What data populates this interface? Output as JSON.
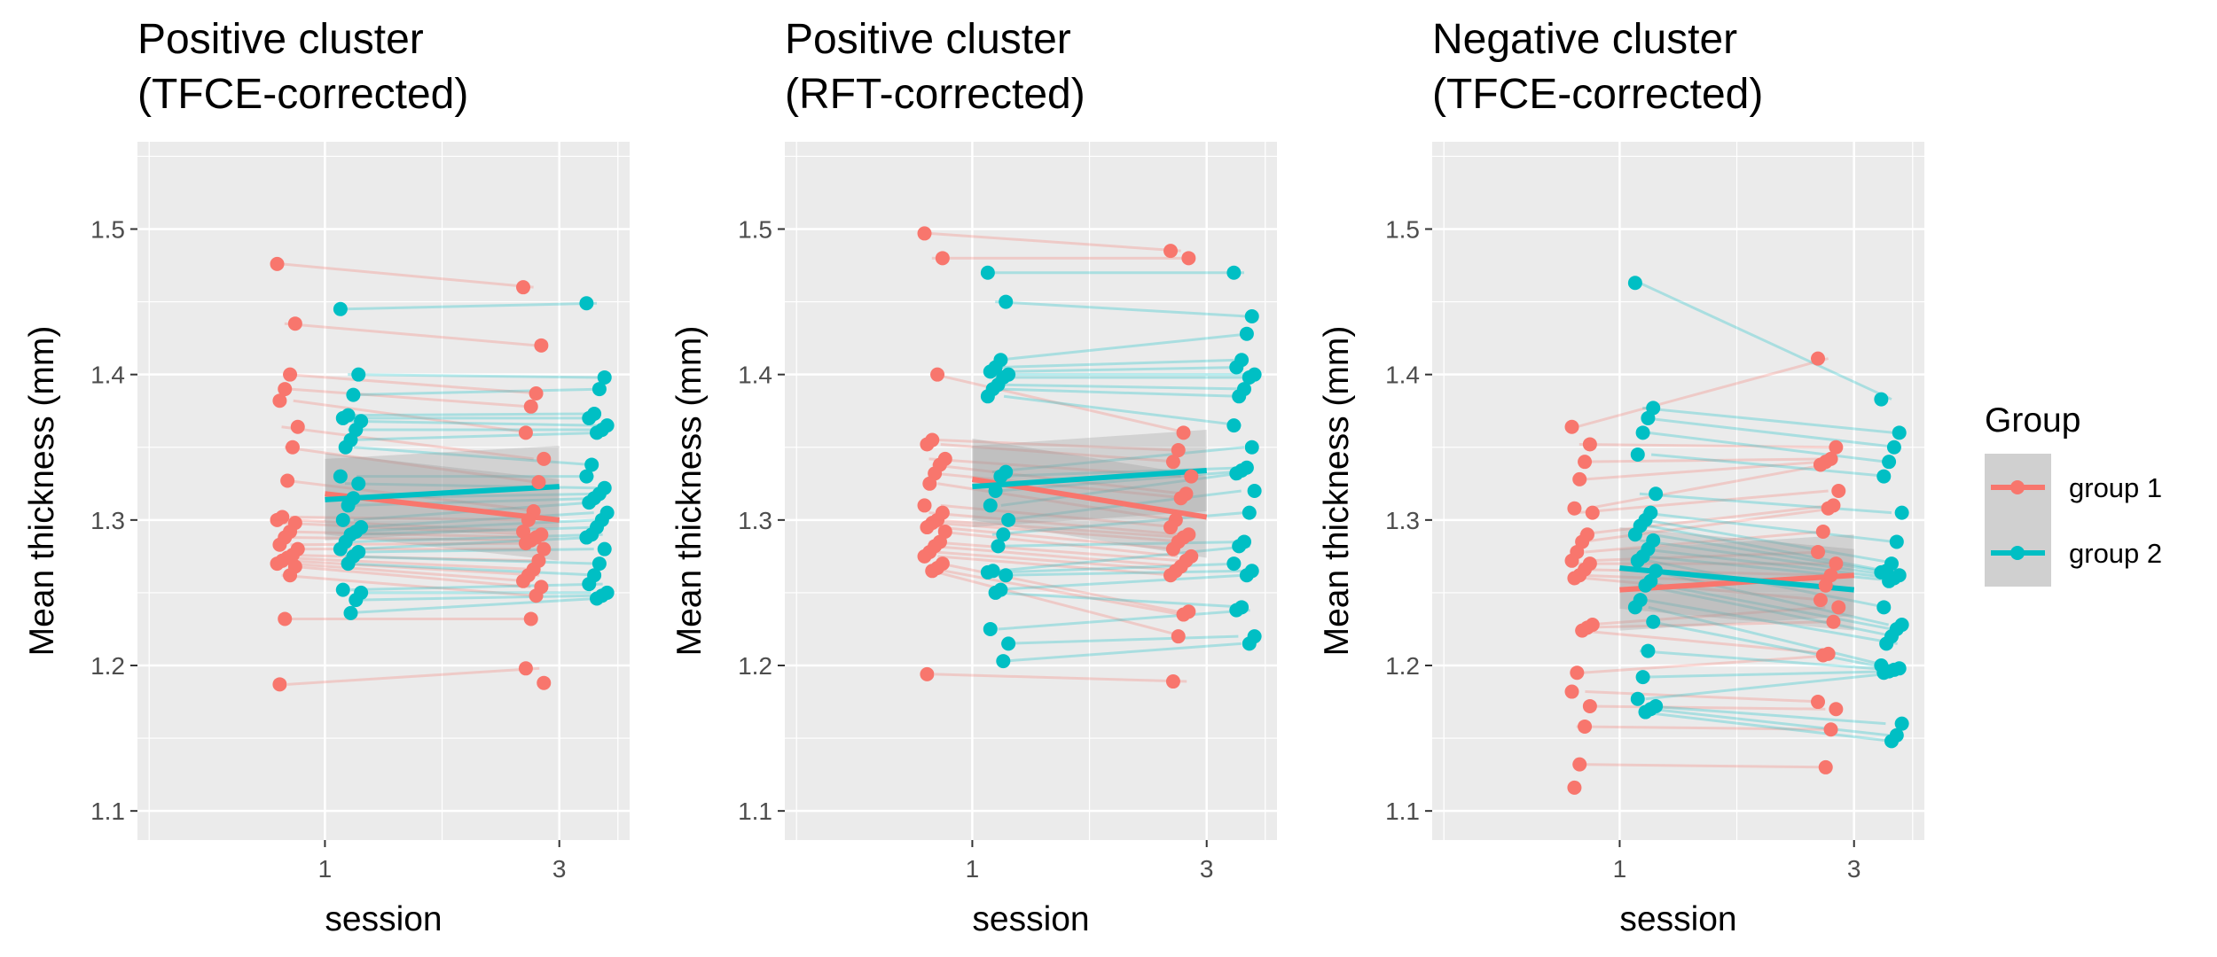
{
  "chart_data": [
    {
      "type": "scatter",
      "title_lines": [
        "Positive cluster",
        " (TFCE-corrected)"
      ],
      "xlabel": "session",
      "ylabel": "Mean thickness (mm)",
      "x_ticks": [
        "1",
        "3"
      ],
      "y_ticks": [
        "1.1",
        "1.2",
        "1.3",
        "1.4",
        "1.5"
      ],
      "ylim": [
        1.08,
        1.56
      ],
      "fit": [
        {
          "name": "group 1",
          "start": 1.318,
          "end": 1.3
        },
        {
          "name": "group 2",
          "start": 1.314,
          "end": 1.323
        }
      ],
      "series": [
        {
          "name": "group 1",
          "s1": [
            1.476,
            1.435,
            1.4,
            1.39,
            1.382,
            1.364,
            1.35,
            1.327,
            1.302,
            1.3,
            1.298,
            1.292,
            1.288,
            1.283,
            1.28,
            1.276,
            1.274,
            1.272,
            1.27,
            1.268,
            1.262,
            1.232,
            1.187
          ],
          "s3": [
            1.46,
            1.42,
            1.387,
            1.378,
            1.36,
            1.342,
            1.326,
            1.306,
            1.3,
            1.292,
            1.29,
            1.288,
            1.286,
            1.284,
            1.28,
            1.272,
            1.266,
            1.262,
            1.258,
            1.254,
            1.248,
            1.232,
            1.198,
            1.188
          ]
        },
        {
          "name": "group 2",
          "s1": [
            1.445,
            1.4,
            1.386,
            1.372,
            1.37,
            1.368,
            1.362,
            1.355,
            1.35,
            1.33,
            1.325,
            1.315,
            1.31,
            1.3,
            1.295,
            1.292,
            1.29,
            1.285,
            1.28,
            1.278,
            1.275,
            1.27,
            1.252,
            1.25,
            1.245,
            1.236
          ],
          "s3": [
            1.449,
            1.398,
            1.39,
            1.373,
            1.37,
            1.365,
            1.362,
            1.36,
            1.338,
            1.33,
            1.322,
            1.318,
            1.315,
            1.312,
            1.305,
            1.3,
            1.295,
            1.29,
            1.288,
            1.28,
            1.27,
            1.262,
            1.256,
            1.25,
            1.248,
            1.246
          ]
        }
      ]
    },
    {
      "type": "scatter",
      "title_lines": [
        "Positive cluster",
        "(RFT-corrected)"
      ],
      "xlabel": "session",
      "ylabel": "Mean thickness (mm)",
      "x_ticks": [
        "1",
        "3"
      ],
      "y_ticks": [
        "1.1",
        "1.2",
        "1.3",
        "1.4",
        "1.5"
      ],
      "ylim": [
        1.08,
        1.56
      ],
      "fit": [
        {
          "name": "group 1",
          "start": 1.328,
          "end": 1.302
        },
        {
          "name": "group 2",
          "start": 1.323,
          "end": 1.334
        }
      ],
      "series": [
        {
          "name": "group 1",
          "s1": [
            1.497,
            1.48,
            1.4,
            1.355,
            1.352,
            1.342,
            1.338,
            1.332,
            1.325,
            1.31,
            1.305,
            1.3,
            1.298,
            1.295,
            1.292,
            1.285,
            1.282,
            1.278,
            1.275,
            1.27,
            1.267,
            1.265,
            1.194
          ],
          "s3": [
            1.485,
            1.48,
            1.36,
            1.348,
            1.34,
            1.33,
            1.318,
            1.315,
            1.3,
            1.295,
            1.29,
            1.288,
            1.285,
            1.28,
            1.275,
            1.272,
            1.268,
            1.265,
            1.262,
            1.237,
            1.235,
            1.22,
            1.189
          ]
        },
        {
          "name": "group 2",
          "s1": [
            1.47,
            1.45,
            1.41,
            1.405,
            1.402,
            1.4,
            1.398,
            1.393,
            1.39,
            1.385,
            1.333,
            1.33,
            1.32,
            1.31,
            1.3,
            1.29,
            1.282,
            1.265,
            1.264,
            1.262,
            1.252,
            1.25,
            1.225,
            1.215,
            1.203
          ],
          "s3": [
            1.47,
            1.44,
            1.428,
            1.41,
            1.405,
            1.4,
            1.398,
            1.39,
            1.385,
            1.365,
            1.35,
            1.336,
            1.334,
            1.332,
            1.32,
            1.305,
            1.285,
            1.282,
            1.27,
            1.265,
            1.262,
            1.24,
            1.238,
            1.22,
            1.215
          ]
        }
      ]
    },
    {
      "type": "scatter",
      "title_lines": [
        "Negative cluster",
        "(TFCE-corrected)"
      ],
      "xlabel": "session",
      "ylabel": "Mean thickness (mm)",
      "x_ticks": [
        "1",
        "3"
      ],
      "y_ticks": [
        "1.1",
        "1.2",
        "1.3",
        "1.4",
        "1.5"
      ],
      "ylim": [
        1.08,
        1.56
      ],
      "fit": [
        {
          "name": "group 1",
          "start": 1.252,
          "end": 1.262
        },
        {
          "name": "group 2",
          "start": 1.267,
          "end": 1.252
        }
      ],
      "series": [
        {
          "name": "group 1",
          "s1": [
            1.364,
            1.352,
            1.34,
            1.328,
            1.308,
            1.305,
            1.29,
            1.285,
            1.278,
            1.272,
            1.27,
            1.266,
            1.262,
            1.26,
            1.228,
            1.226,
            1.224,
            1.195,
            1.182,
            1.172,
            1.158,
            1.132,
            1.116
          ],
          "s3": [
            1.411,
            1.35,
            1.342,
            1.34,
            1.338,
            1.32,
            1.31,
            1.308,
            1.292,
            1.278,
            1.27,
            1.262,
            1.255,
            1.245,
            1.24,
            1.23,
            1.208,
            1.207,
            1.175,
            1.17,
            1.156,
            1.13
          ]
        },
        {
          "name": "group 2",
          "s1": [
            1.463,
            1.377,
            1.37,
            1.36,
            1.345,
            1.318,
            1.305,
            1.3,
            1.296,
            1.29,
            1.286,
            1.28,
            1.275,
            1.272,
            1.265,
            1.258,
            1.255,
            1.245,
            1.24,
            1.23,
            1.21,
            1.192,
            1.177,
            1.172,
            1.17,
            1.168
          ],
          "s3": [
            1.383,
            1.36,
            1.35,
            1.34,
            1.33,
            1.305,
            1.285,
            1.27,
            1.265,
            1.264,
            1.262,
            1.26,
            1.258,
            1.24,
            1.228,
            1.225,
            1.22,
            1.215,
            1.2,
            1.198,
            1.197,
            1.196,
            1.195,
            1.16,
            1.152,
            1.148
          ]
        }
      ]
    }
  ],
  "legend": {
    "title": "Group",
    "items": [
      {
        "label": "group 1",
        "color": "#F8766D"
      },
      {
        "label": "group 2",
        "color": "#00BFC4"
      }
    ]
  },
  "colors": {
    "group_1": "#F8766D",
    "group_2": "#00BFC4",
    "panel_background": "#EBEBEB",
    "grid": "#FFFFFF",
    "ribbon": "#999999"
  }
}
